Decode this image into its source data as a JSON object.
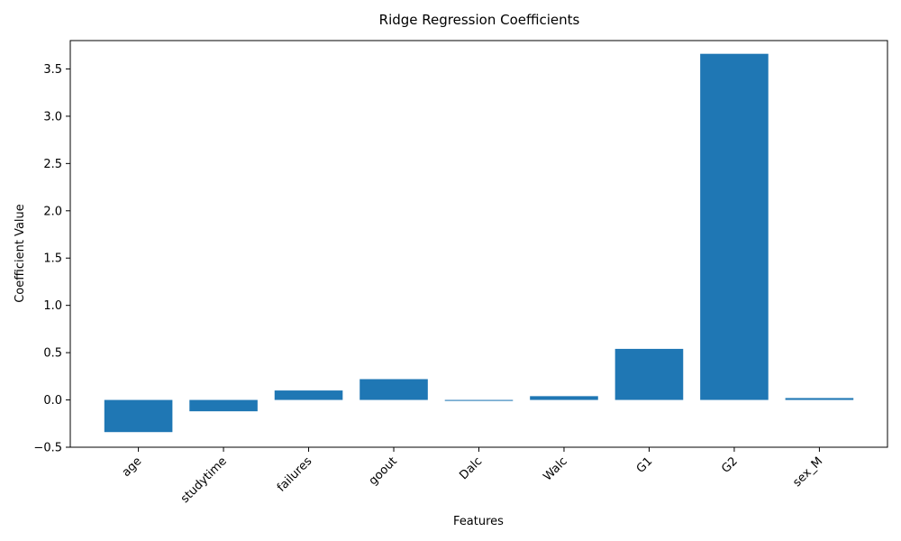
{
  "chart_data": {
    "type": "bar",
    "title": "Ridge Regression Coefficients",
    "xlabel": "Features",
    "ylabel": "Coefficient Value",
    "categories": [
      "age",
      "studytime",
      "failures",
      "goout",
      "Dalc",
      "Walc",
      "G1",
      "G2",
      "sex_M"
    ],
    "values": [
      -0.34,
      -0.12,
      0.1,
      0.22,
      -0.01,
      0.04,
      0.54,
      3.66,
      0.02
    ],
    "ylim": [
      -0.5,
      3.8
    ],
    "yticks": [
      -0.5,
      0.0,
      0.5,
      1.0,
      1.5,
      2.0,
      2.5,
      3.0,
      3.5
    ],
    "ytick_labels": [
      "−0.5",
      "0.0",
      "0.5",
      "1.0",
      "1.5",
      "2.0",
      "2.5",
      "3.0",
      "3.5"
    ],
    "xtick_rotation": 45,
    "grid": false,
    "legend": "none",
    "bar_color": "#1f77b4"
  }
}
